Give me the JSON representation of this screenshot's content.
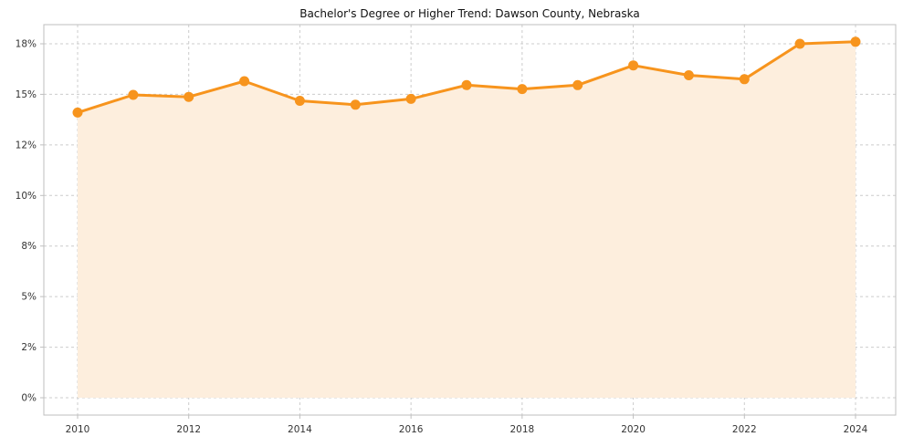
{
  "chart_data": {
    "type": "line",
    "title": "Bachelor's Degree or Higher Trend: Dawson County, Nebraska",
    "x": [
      2010,
      2011,
      2012,
      2013,
      2014,
      2015,
      2016,
      2017,
      2018,
      2019,
      2020,
      2021,
      2022,
      2023,
      2024
    ],
    "series": [
      {
        "name": "Bachelor's degree or higher (%)",
        "values": [
          14.5,
          15.4,
          15.3,
          16.1,
          15.1,
          14.9,
          15.2,
          15.9,
          15.7,
          15.9,
          16.9,
          16.4,
          16.2,
          18.0,
          18.1
        ]
      }
    ],
    "xlabel": "",
    "ylabel": "",
    "ylim": [
      0,
      18.8
    ],
    "y_tick_labels": [
      "0%",
      "2%",
      "5%",
      "8%",
      "10%",
      "12%",
      "15%",
      "18%"
    ],
    "x_tick_labels": [
      "2010",
      "2012",
      "2014",
      "2016",
      "2018",
      "2020",
      "2022",
      "2024"
    ],
    "grid": true,
    "grid_style": "dashed",
    "legend": "none",
    "marker": "circle",
    "colors": {
      "line": "#f7941d",
      "marker": "#f7941d",
      "area": "#fdeedd",
      "grid": "#cccccc",
      "axis": "#bfbfbf",
      "text": "#333333",
      "title": "#111111"
    }
  }
}
